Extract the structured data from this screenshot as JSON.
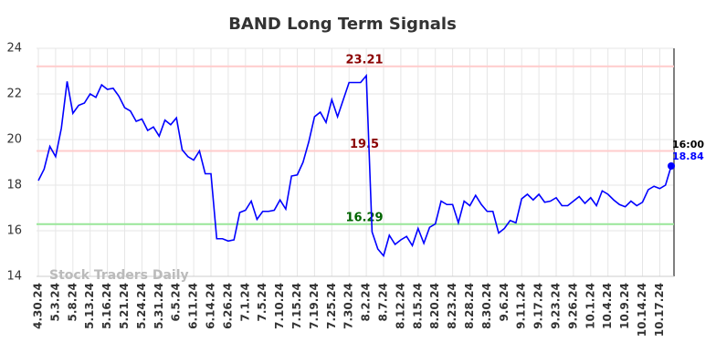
{
  "chart_data": {
    "type": "line",
    "title": "BAND Long Term Signals",
    "watermark": "Stock Traders Daily",
    "categories": [
      "4.30.24",
      null,
      null,
      "5.3.24",
      null,
      null,
      "5.8.24",
      null,
      null,
      "5.13.24",
      null,
      null,
      "5.16.24",
      null,
      null,
      "5.21.24",
      null,
      null,
      "5.24.24",
      null,
      null,
      "5.31.24",
      null,
      null,
      "6.5.24",
      null,
      null,
      "6.11.24",
      null,
      null,
      "6.14.24",
      null,
      null,
      "6.26.24",
      null,
      null,
      "7.1.24",
      null,
      null,
      "7.5.24",
      null,
      null,
      "7.10.24",
      null,
      null,
      "7.15.24",
      null,
      null,
      "7.19.24",
      null,
      null,
      "7.25.24",
      null,
      null,
      "7.30.24",
      null,
      null,
      "8.2.24",
      null,
      null,
      "8.7.24",
      null,
      null,
      "8.12.24",
      null,
      null,
      "8.15.24",
      null,
      null,
      "8.20.24",
      null,
      null,
      "8.23.24",
      null,
      null,
      "8.28.24",
      null,
      null,
      "8.30.24",
      null,
      null,
      "9.6.24",
      null,
      null,
      "9.11.24",
      null,
      null,
      "9.17.24",
      null,
      null,
      "9.23.24",
      null,
      null,
      "9.26.24",
      null,
      null,
      "10.1.24",
      null,
      null,
      "10.4.24",
      null,
      null,
      "10.9.24",
      null,
      null,
      "10.14.24",
      null,
      null,
      "10.17.24",
      null,
      null
    ],
    "series": [
      {
        "color": "#0000ff",
        "values": [
          18.2,
          18.7,
          19.7,
          19.25,
          20.5,
          22.55,
          21.15,
          21.5,
          21.6,
          22.0,
          21.85,
          22.4,
          22.2,
          22.25,
          21.9,
          21.4,
          21.25,
          20.8,
          20.9,
          20.4,
          20.55,
          20.15,
          20.85,
          20.65,
          20.95,
          19.55,
          19.25,
          19.1,
          19.5,
          18.5,
          18.5,
          15.65,
          15.65,
          15.55,
          15.6,
          16.8,
          16.9,
          17.3,
          16.5,
          16.85,
          16.85,
          16.9,
          17.35,
          16.95,
          18.4,
          18.45,
          19.0,
          19.9,
          21.0,
          21.2,
          20.75,
          21.75,
          21.0,
          21.75,
          22.5,
          22.5,
          22.5,
          22.8,
          15.95,
          15.2,
          14.9,
          15.8,
          15.4,
          15.6,
          15.75,
          15.35,
          16.1,
          15.45,
          16.15,
          16.3,
          17.3,
          17.15,
          17.15,
          16.35,
          17.3,
          17.1,
          17.55,
          17.15,
          16.85,
          16.85,
          15.9,
          16.1,
          16.45,
          16.35,
          17.4,
          17.6,
          17.35,
          17.6,
          17.25,
          17.3,
          17.45,
          17.1,
          17.1,
          17.3,
          17.5,
          17.2,
          17.45,
          17.1,
          17.75,
          17.6,
          17.35,
          17.15,
          17.05,
          17.3,
          17.1,
          17.25,
          17.8,
          17.95,
          17.85,
          18.0,
          18.84
        ]
      }
    ],
    "last_time": "16:00",
    "hlines": [
      {
        "value": 23.21,
        "color": "#ffcccc",
        "label_color": "#8b0000"
      },
      {
        "value": 19.5,
        "color": "#ffcccc",
        "label_color": "#8b0000"
      },
      {
        "value": 16.29,
        "color": "#99e699",
        "label_color": "#006400"
      }
    ],
    "ylim": [
      14,
      24
    ],
    "yticks": [
      14,
      16,
      18,
      20,
      22,
      24
    ],
    "grid": true
  }
}
